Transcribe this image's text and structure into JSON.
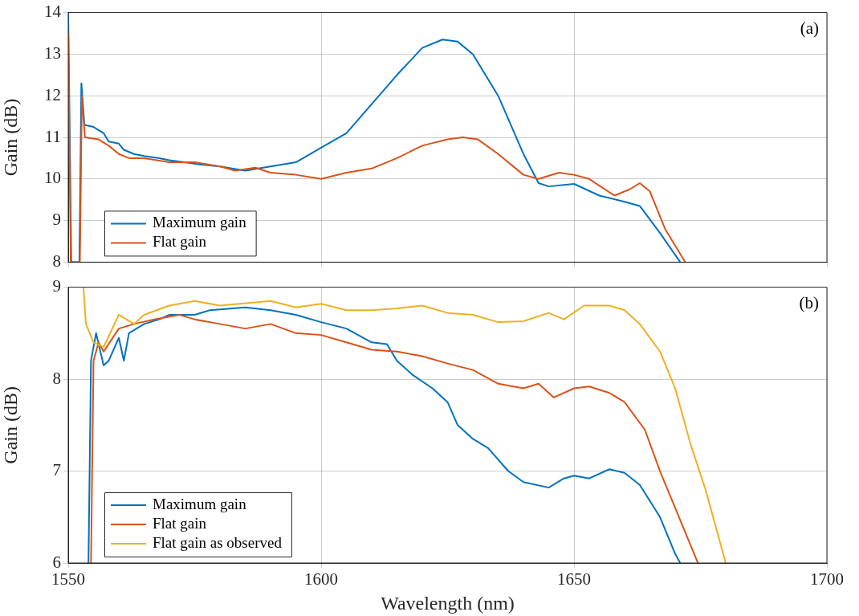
{
  "chart_data": [
    {
      "type": "line",
      "ylabel": "Gain (dB)",
      "annotations": [
        "(a)"
      ],
      "xlim": [
        1550,
        1700
      ],
      "xticks": [
        1550,
        1600,
        1650,
        1700
      ],
      "ylim": [
        8,
        14
      ],
      "yticks": [
        8,
        9,
        10,
        11,
        12,
        13,
        14
      ],
      "grid": true,
      "legend": "bottom left",
      "tick_labels": "y",
      "series": [
        {
          "name": "Maximum gain",
          "color": "#0072bd",
          "x": [
            1550,
            1550.6,
            1552.2,
            1552.6,
            1553.2,
            1555,
            1557,
            1558,
            1560,
            1561,
            1563,
            1565,
            1568,
            1570,
            1573,
            1576,
            1580,
            1585,
            1590,
            1595,
            1600,
            1605,
            1610,
            1615,
            1620,
            1624,
            1627,
            1630,
            1635,
            1640,
            1643,
            1645,
            1650,
            1655,
            1660,
            1663,
            1667,
            1671
          ],
          "values": [
            14,
            8,
            8,
            12.3,
            11.3,
            11.25,
            11.1,
            10.9,
            10.85,
            10.7,
            10.6,
            10.55,
            10.5,
            10.45,
            10.4,
            10.35,
            10.3,
            10.2,
            10.3,
            10.4,
            10.75,
            11.1,
            11.8,
            12.5,
            13.15,
            13.35,
            13.3,
            13,
            12,
            10.6,
            9.9,
            9.82,
            9.88,
            9.6,
            9.45,
            9.35,
            8.7,
            8
          ]
        },
        {
          "name": "Flat gain",
          "color": "#d95319",
          "x": [
            1550,
            1550.5,
            1552.3,
            1552.7,
            1553.3,
            1556,
            1558,
            1560,
            1562,
            1565,
            1570,
            1575,
            1580,
            1583,
            1587,
            1590,
            1595,
            1600,
            1605,
            1610,
            1615,
            1620,
            1625,
            1628,
            1631,
            1635,
            1640,
            1643,
            1647,
            1650,
            1653,
            1658,
            1661,
            1663,
            1665,
            1668,
            1672
          ],
          "values": [
            13.5,
            8,
            8,
            12,
            11,
            10.95,
            10.8,
            10.6,
            10.5,
            10.5,
            10.4,
            10.4,
            10.3,
            10.2,
            10.27,
            10.15,
            10.1,
            10,
            10.15,
            10.25,
            10.5,
            10.8,
            10.95,
            11,
            10.95,
            10.6,
            10.1,
            10,
            10.15,
            10.1,
            10,
            9.6,
            9.75,
            9.9,
            9.7,
            8.8,
            8
          ]
        }
      ]
    },
    {
      "type": "line",
      "ylabel": "Gain (dB)",
      "xlabel": "Wavelength (nm)",
      "annotations": [
        "(b)"
      ],
      "xlim": [
        1550,
        1700
      ],
      "xticks": [
        1550,
        1600,
        1650,
        1700
      ],
      "ylim": [
        6,
        9
      ],
      "yticks": [
        6,
        7,
        8,
        9
      ],
      "grid": true,
      "legend": "bottom left",
      "series": [
        {
          "name": "Maximum gain",
          "color": "#0072bd",
          "x": [
            1554,
            1554.5,
            1555.5,
            1557,
            1558,
            1560,
            1561,
            1562,
            1565,
            1568,
            1570,
            1575,
            1578,
            1585,
            1590,
            1595,
            1600,
            1605,
            1610,
            1613,
            1615,
            1618,
            1622,
            1625,
            1627,
            1630,
            1633,
            1637,
            1640,
            1645,
            1648,
            1650,
            1653,
            1657,
            1660,
            1663,
            1667,
            1670,
            1671
          ],
          "values": [
            6,
            8.2,
            8.5,
            8.15,
            8.2,
            8.45,
            8.2,
            8.5,
            8.6,
            8.65,
            8.7,
            8.7,
            8.75,
            8.78,
            8.75,
            8.7,
            8.62,
            8.55,
            8.4,
            8.38,
            8.2,
            8.05,
            7.9,
            7.75,
            7.5,
            7.35,
            7.25,
            7,
            6.88,
            6.82,
            6.92,
            6.95,
            6.92,
            7.02,
            6.98,
            6.85,
            6.5,
            6.1,
            6
          ]
        },
        {
          "name": "Flat gain",
          "color": "#d95319",
          "x": [
            1554.5,
            1555,
            1556,
            1557,
            1560,
            1563,
            1567,
            1572,
            1575,
            1580,
            1585,
            1590,
            1595,
            1600,
            1605,
            1610,
            1615,
            1620,
            1625,
            1630,
            1635,
            1640,
            1643,
            1646,
            1650,
            1653,
            1657,
            1660,
            1664,
            1667,
            1670,
            1673,
            1674.5
          ],
          "values": [
            6,
            8.2,
            8.4,
            8.3,
            8.55,
            8.6,
            8.65,
            8.7,
            8.65,
            8.6,
            8.55,
            8.6,
            8.5,
            8.48,
            8.4,
            8.32,
            8.3,
            8.25,
            8.17,
            8.1,
            7.95,
            7.9,
            7.95,
            7.8,
            7.9,
            7.92,
            7.85,
            7.75,
            7.45,
            7,
            6.6,
            6.2,
            6
          ]
        },
        {
          "name": "Flat gain as observed",
          "color": "#edb120",
          "x": [
            1553,
            1553.5,
            1555,
            1557,
            1560,
            1563,
            1565,
            1570,
            1575,
            1580,
            1590,
            1595,
            1600,
            1605,
            1610,
            1615,
            1620,
            1625,
            1630,
            1635,
            1640,
            1645,
            1648,
            1652,
            1657,
            1660,
            1663,
            1667,
            1670,
            1673,
            1676,
            1678,
            1680
          ],
          "values": [
            9,
            8.6,
            8.4,
            8.35,
            8.7,
            8.6,
            8.7,
            8.8,
            8.85,
            8.8,
            8.85,
            8.78,
            8.82,
            8.75,
            8.75,
            8.77,
            8.8,
            8.72,
            8.7,
            8.62,
            8.63,
            8.72,
            8.65,
            8.8,
            8.8,
            8.75,
            8.6,
            8.3,
            7.9,
            7.3,
            6.8,
            6.4,
            6
          ]
        }
      ]
    }
  ]
}
